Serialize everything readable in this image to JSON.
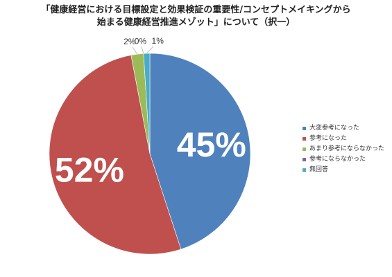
{
  "chart_data": {
    "type": "pie",
    "title_lines": [
      "「健康経営における目標設定と効果検証の重要性/コンセプトメイキングから",
      "始まる健康経営推進メゾット」について（択一）"
    ],
    "categories": [
      "大変参考になった",
      "参考になった",
      "あまり参考にならなかった",
      "参考にならなかった",
      "無回答"
    ],
    "values": [
      45,
      52,
      2,
      0,
      1
    ],
    "value_labels": [
      "45%",
      "52%",
      "2%",
      "0%",
      "1%"
    ],
    "colors": [
      "#4F81BD",
      "#C0504D",
      "#9BBB59",
      "#8064A2",
      "#4BACC6"
    ],
    "legend_position": "right"
  }
}
